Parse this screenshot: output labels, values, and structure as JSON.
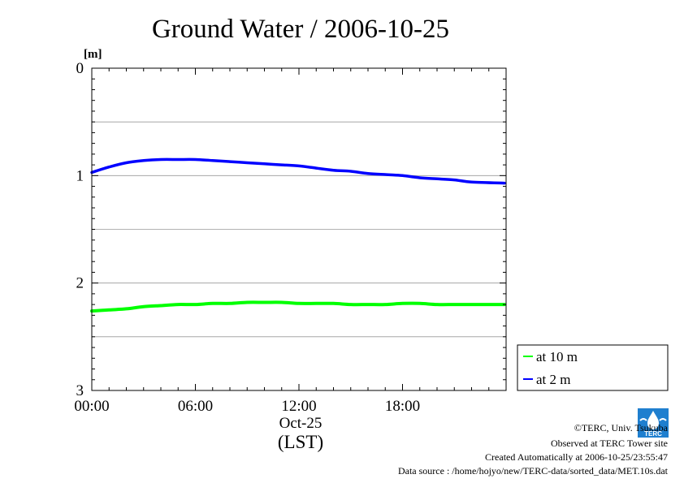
{
  "chart_data": {
    "type": "line",
    "title": "Ground Water / 2006-10-25",
    "ylabel": "[m]",
    "xlabel": "(LST)",
    "x_ticks": [
      "00:00",
      "06:00",
      "12:00",
      "18:00"
    ],
    "x_tick_hours": [
      0,
      6,
      12,
      18
    ],
    "x_date_label": "Oct-25",
    "xlim": [
      0,
      24
    ],
    "ylim": [
      0,
      3
    ],
    "y_inverted": true,
    "y_ticks": [
      0,
      1,
      2,
      3
    ],
    "y_gridlines": [
      0.5,
      1,
      1.5,
      2,
      2.5
    ],
    "grid": true,
    "legend_position": "right-bottom",
    "series": [
      {
        "name": "at 10 m",
        "color": "#00ff00",
        "x": [
          0,
          1,
          2,
          3,
          4,
          5,
          6,
          7,
          8,
          9,
          10,
          11,
          12,
          13,
          14,
          15,
          16,
          17,
          18,
          19,
          20,
          21,
          22,
          23.9
        ],
        "y": [
          2.26,
          2.25,
          2.24,
          2.22,
          2.21,
          2.2,
          2.2,
          2.19,
          2.19,
          2.18,
          2.18,
          2.18,
          2.19,
          2.19,
          2.19,
          2.2,
          2.2,
          2.2,
          2.19,
          2.19,
          2.2,
          2.2,
          2.2,
          2.2
        ]
      },
      {
        "name": "at 2 m",
        "color": "#0000ff",
        "x": [
          0,
          1,
          2,
          3,
          4,
          5,
          6,
          7,
          8,
          9,
          10,
          11,
          12,
          13,
          14,
          15,
          16,
          17,
          18,
          19,
          20,
          21,
          22,
          23.9
        ],
        "y": [
          0.97,
          0.92,
          0.88,
          0.86,
          0.85,
          0.85,
          0.85,
          0.86,
          0.87,
          0.88,
          0.89,
          0.9,
          0.91,
          0.93,
          0.95,
          0.96,
          0.98,
          0.99,
          1.0,
          1.02,
          1.03,
          1.04,
          1.06,
          1.07
        ]
      }
    ]
  },
  "credits": {
    "copyright": "©TERC, Univ. Tsukuba",
    "observed": "Observed at TERC Tower site",
    "created": "Created Automatically at 2006-10-25/23:55:47",
    "source": "Data source : /home/hojyo/new/TERC-data/sorted_data/MET.10s.dat"
  },
  "logo": {
    "name": "TERC logo",
    "text": "TERC",
    "color": "#0077cc"
  }
}
